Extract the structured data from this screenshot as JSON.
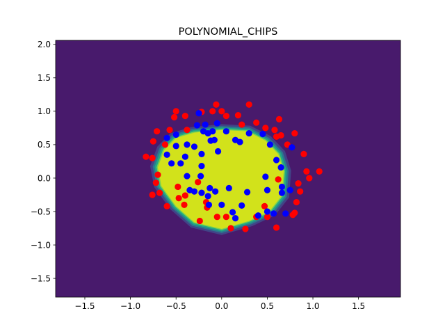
{
  "chart_data": {
    "type": "scatter",
    "title": "POLYNOMIAL_CHIPS",
    "xlabel": "",
    "ylabel": "",
    "xlim": [
      -1.82,
      1.96
    ],
    "ylim": [
      -1.78,
      2.06
    ],
    "xticks": [
      -1.5,
      -1.0,
      -0.5,
      0.0,
      0.5,
      1.0,
      1.5
    ],
    "yticks": [
      -1.5,
      -1.0,
      -0.5,
      0.0,
      0.5,
      1.0,
      1.5,
      2.0
    ],
    "xtick_labels": [
      "−1.5",
      "−1.0",
      "−0.5",
      "0.0",
      "0.5",
      "1.0",
      "1.5"
    ],
    "ytick_labels": [
      "−1.5",
      "−1.0",
      "−0.5",
      "0.0",
      "0.5",
      "1.0",
      "1.5",
      "2.0"
    ],
    "grid": false,
    "background_colors": {
      "outside": "#481a6c",
      "inside": "#d2e21b",
      "band1": "#7ad151",
      "band2": "#22a884",
      "band3": "#2a788e",
      "band4": "#414487"
    },
    "decision_region": [
      [
        -0.63,
        0.42
      ],
      [
        -0.5,
        0.6
      ],
      [
        -0.3,
        0.68
      ],
      [
        0.0,
        0.72
      ],
      [
        0.28,
        0.7
      ],
      [
        0.48,
        0.56
      ],
      [
        0.62,
        0.36
      ],
      [
        0.68,
        0.1
      ],
      [
        0.66,
        -0.26
      ],
      [
        0.52,
        -0.5
      ],
      [
        0.3,
        -0.64
      ],
      [
        0.0,
        -0.76
      ],
      [
        -0.3,
        -0.66
      ],
      [
        -0.5,
        -0.42
      ],
      [
        -0.66,
        -0.12
      ],
      [
        -0.7,
        0.16
      ]
    ],
    "series": [
      {
        "color": "#ff0000",
        "points": [
          [
            -0.83,
            0.32
          ],
          [
            -0.76,
            0.3
          ],
          [
            -0.75,
            0.55
          ],
          [
            -0.71,
            0.7
          ],
          [
            -0.62,
            0.5
          ],
          [
            -0.57,
            0.72
          ],
          [
            -0.52,
            0.91
          ],
          [
            -0.5,
            1.0
          ],
          [
            -0.4,
            0.93
          ],
          [
            -0.38,
            0.72
          ],
          [
            -0.22,
            0.99
          ],
          [
            -0.1,
            1.0
          ],
          [
            -0.06,
            1.1
          ],
          [
            0.0,
            1.0
          ],
          [
            0.05,
            0.93
          ],
          [
            0.18,
            0.94
          ],
          [
            0.22,
            0.8
          ],
          [
            0.3,
            1.1
          ],
          [
            0.38,
            0.83
          ],
          [
            0.48,
            0.75
          ],
          [
            0.58,
            0.72
          ],
          [
            0.6,
            0.62
          ],
          [
            0.63,
            0.88
          ],
          [
            0.65,
            0.64
          ],
          [
            0.72,
            0.5
          ],
          [
            0.8,
            0.67
          ],
          [
            0.9,
            0.36
          ],
          [
            0.93,
            0.1
          ],
          [
            0.96,
            0.0
          ],
          [
            1.07,
            0.1
          ],
          [
            0.84,
            -0.08
          ],
          [
            0.86,
            -0.2
          ],
          [
            0.82,
            -0.36
          ],
          [
            0.8,
            -0.52
          ],
          [
            0.78,
            -0.55
          ],
          [
            0.62,
            -0.02
          ],
          [
            0.6,
            -0.74
          ],
          [
            0.5,
            -0.58
          ],
          [
            0.47,
            -0.42
          ],
          [
            0.38,
            -0.58
          ],
          [
            0.26,
            -0.76
          ],
          [
            0.1,
            -0.75
          ],
          [
            0.05,
            -0.58
          ],
          [
            -0.05,
            -0.58
          ],
          [
            -0.16,
            -0.44
          ],
          [
            -0.17,
            -0.36
          ],
          [
            -0.24,
            -0.64
          ],
          [
            -0.26,
            -0.06
          ],
          [
            -0.4,
            -0.26
          ],
          [
            -0.41,
            -0.4
          ],
          [
            -0.47,
            -0.3
          ],
          [
            -0.48,
            -0.13
          ],
          [
            -0.6,
            -0.42
          ],
          [
            -0.68,
            -0.22
          ],
          [
            -0.72,
            -0.07
          ],
          [
            -0.76,
            -0.25
          ],
          [
            -0.7,
            0.05
          ]
        ]
      },
      {
        "color": "#0000ff",
        "points": [
          [
            -0.6,
            0.6
          ],
          [
            -0.5,
            0.65
          ],
          [
            -0.5,
            0.48
          ],
          [
            -0.55,
            0.22
          ],
          [
            -0.45,
            0.22
          ],
          [
            -0.4,
            0.32
          ],
          [
            -0.38,
            0.5
          ],
          [
            -0.3,
            0.47
          ],
          [
            -0.27,
            0.79
          ],
          [
            -0.25,
            0.97
          ],
          [
            -0.2,
            0.7
          ],
          [
            -0.18,
            0.8
          ],
          [
            -0.15,
            0.67
          ],
          [
            -0.12,
            0.56
          ],
          [
            -0.1,
            0.7
          ],
          [
            -0.08,
            0.57
          ],
          [
            -0.05,
            0.82
          ],
          [
            0.05,
            0.7
          ],
          [
            -0.22,
            0.36
          ],
          [
            -0.22,
            0.18
          ],
          [
            -0.04,
            0.4
          ],
          [
            -0.6,
            0.35
          ],
          [
            -0.38,
            0.03
          ],
          [
            -0.23,
            0.03
          ],
          [
            -0.35,
            -0.18
          ],
          [
            -0.3,
            -0.2
          ],
          [
            -0.22,
            -0.22
          ],
          [
            -0.15,
            -0.27
          ],
          [
            -0.13,
            -0.15
          ],
          [
            0.08,
            -0.15
          ],
          [
            -0.07,
            -0.2
          ],
          [
            0.0,
            -0.4
          ],
          [
            -0.14,
            -0.4
          ],
          [
            0.12,
            -0.51
          ],
          [
            0.15,
            -0.6
          ],
          [
            0.22,
            -0.41
          ],
          [
            0.28,
            -0.21
          ],
          [
            0.15,
            0.57
          ],
          [
            0.2,
            0.54
          ],
          [
            0.3,
            0.67
          ],
          [
            0.45,
            0.66
          ],
          [
            0.53,
            0.5
          ],
          [
            0.6,
            0.27
          ],
          [
            0.65,
            0.16
          ],
          [
            0.48,
            0.02
          ],
          [
            0.5,
            -0.18
          ],
          [
            0.66,
            -0.13
          ],
          [
            0.66,
            -0.22
          ],
          [
            0.7,
            -0.53
          ],
          [
            0.57,
            -0.53
          ],
          [
            0.4,
            -0.56
          ],
          [
            0.5,
            -0.5
          ],
          [
            0.75,
            -0.18
          ],
          [
            0.77,
            0.46
          ]
        ]
      }
    ]
  }
}
